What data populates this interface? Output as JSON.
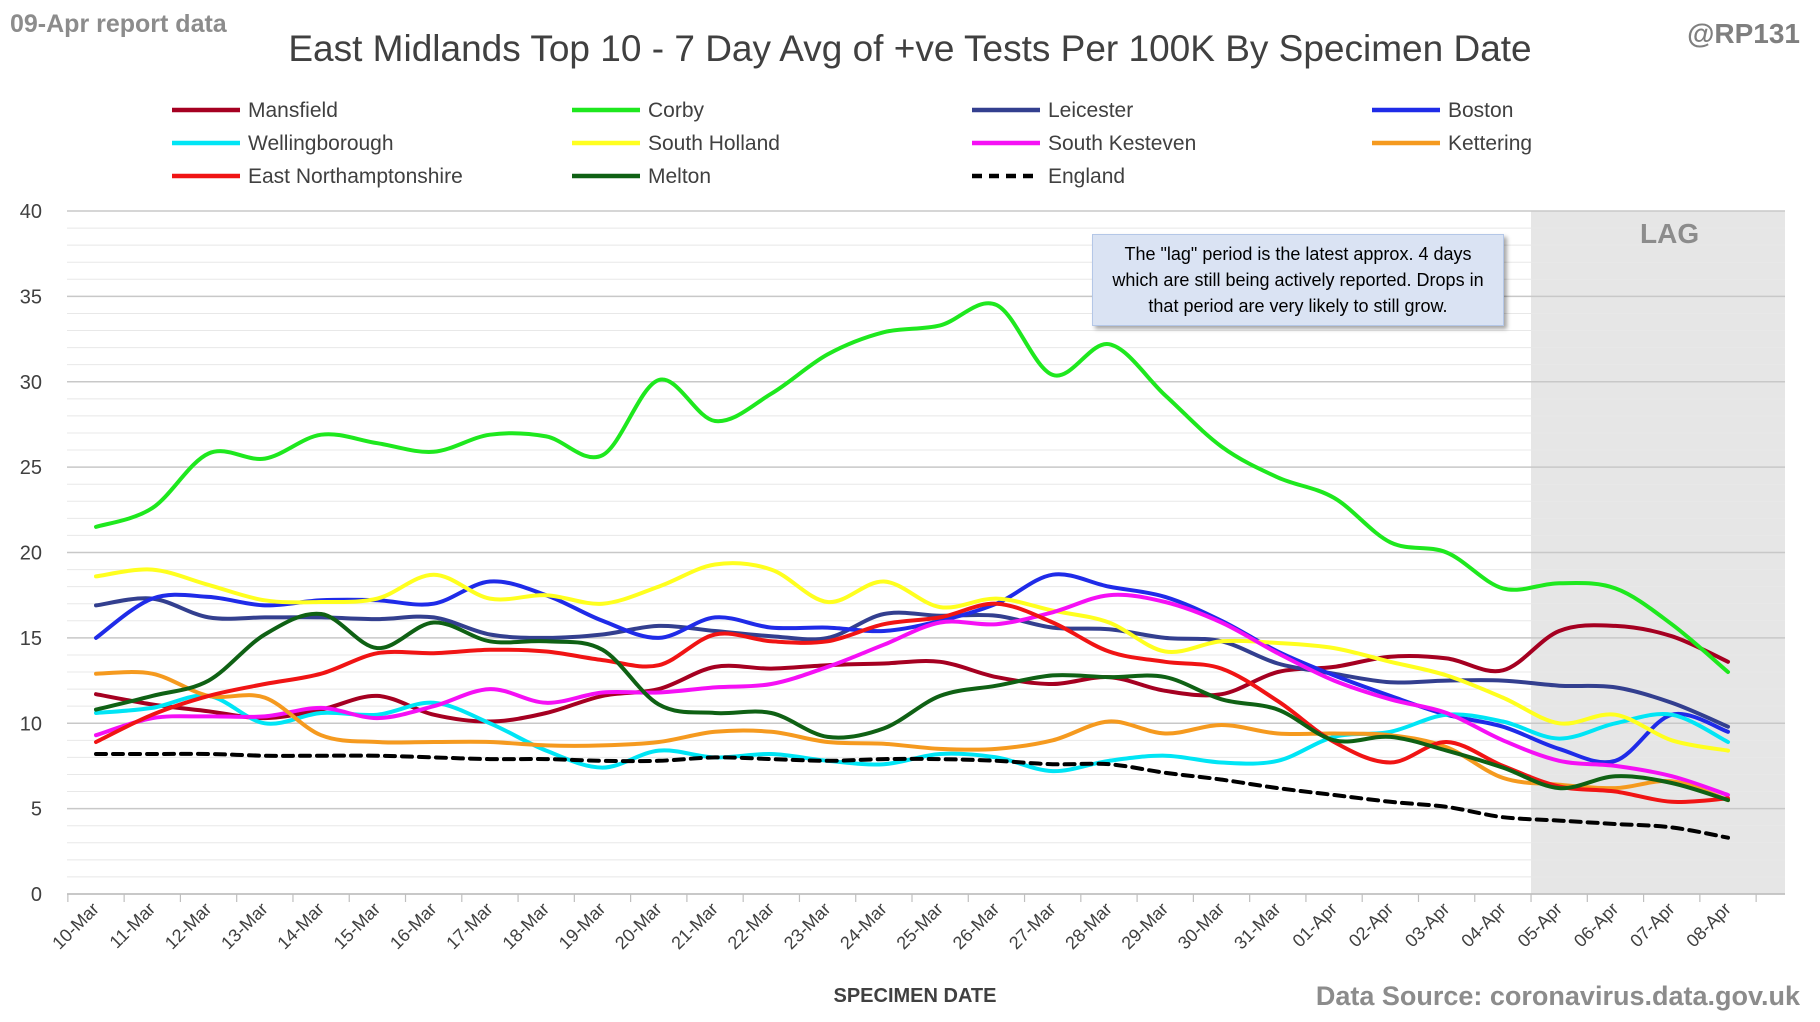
{
  "header": {
    "report_label": "09-Apr report data",
    "handle": "@RP131",
    "source": "Data Source: coronavirus.data.gov.uk"
  },
  "annotation": {
    "note": "The \"lag\" period is the latest approx. 4 days which are still being actively reported. Drops in that period are very likely to still grow.",
    "lag_label": "LAG"
  },
  "chart_data": {
    "type": "line",
    "title": "East Midlands Top 10 - 7 Day Avg of +ve Tests Per 100K By Specimen Date",
    "xlabel": "SPECIMEN DATE",
    "ylabel": "",
    "ylim": [
      0,
      40
    ],
    "yticks": [
      0,
      5,
      10,
      15,
      20,
      25,
      30,
      35,
      40
    ],
    "grid": true,
    "legend": "top",
    "lag_period": [
      "05-Apr",
      "08-Apr"
    ],
    "categories": [
      "10-Mar",
      "11-Mar",
      "12-Mar",
      "13-Mar",
      "14-Mar",
      "15-Mar",
      "16-Mar",
      "17-Mar",
      "18-Mar",
      "19-Mar",
      "20-Mar",
      "21-Mar",
      "22-Mar",
      "23-Mar",
      "24-Mar",
      "25-Mar",
      "26-Mar",
      "27-Mar",
      "28-Mar",
      "29-Mar",
      "30-Mar",
      "31-Mar",
      "01-Apr",
      "02-Apr",
      "03-Apr",
      "04-Apr",
      "05-Apr",
      "06-Apr",
      "07-Apr",
      "08-Apr"
    ],
    "series": [
      {
        "name": "Mansfield",
        "color": "#a50021",
        "dash": false,
        "values": [
          11.7,
          11.1,
          10.7,
          10.3,
          10.8,
          11.6,
          10.5,
          10.1,
          10.6,
          11.6,
          12.0,
          13.3,
          13.2,
          13.4,
          13.5,
          13.6,
          12.7,
          12.3,
          12.7,
          11.9,
          11.7,
          13.0,
          13.3,
          13.9,
          13.8,
          13.1,
          15.4,
          15.7,
          15.1,
          13.6
        ]
      },
      {
        "name": "Corby",
        "color": "#1ee81e",
        "dash": false,
        "values": [
          21.5,
          22.6,
          25.8,
          25.5,
          26.9,
          26.4,
          25.9,
          26.9,
          26.8,
          25.7,
          30.1,
          27.7,
          29.3,
          31.6,
          32.9,
          33.3,
          34.5,
          30.4,
          32.2,
          29.2,
          26.2,
          24.4,
          23.2,
          20.6,
          20.0,
          17.9,
          18.2,
          17.9,
          15.8,
          13.0
        ]
      },
      {
        "name": "Leicester",
        "color": "#333f8f",
        "dash": false,
        "values": [
          16.9,
          17.3,
          16.2,
          16.2,
          16.2,
          16.1,
          16.2,
          15.2,
          15.0,
          15.2,
          15.7,
          15.4,
          15.1,
          15.0,
          16.4,
          16.3,
          16.3,
          15.6,
          15.5,
          15.0,
          14.8,
          13.5,
          12.9,
          12.4,
          12.5,
          12.5,
          12.2,
          12.1,
          11.2,
          9.8
        ]
      },
      {
        "name": "Boston",
        "color": "#1f2be8",
        "dash": false,
        "values": [
          15.0,
          17.3,
          17.4,
          16.9,
          17.2,
          17.2,
          17.0,
          18.3,
          17.5,
          16.0,
          15.0,
          16.2,
          15.6,
          15.6,
          15.4,
          16.0,
          17.0,
          18.7,
          18.0,
          17.4,
          16.0,
          14.2,
          12.8,
          11.6,
          10.5,
          9.8,
          8.5,
          7.8,
          10.5,
          9.5
        ]
      },
      {
        "name": "Wellingborough",
        "color": "#00e5f5",
        "dash": false,
        "values": [
          10.6,
          10.9,
          11.6,
          10.0,
          10.6,
          10.5,
          11.2,
          10.0,
          8.4,
          7.4,
          8.4,
          8.0,
          8.2,
          7.8,
          7.6,
          8.2,
          8.0,
          7.2,
          7.8,
          8.1,
          7.7,
          7.8,
          9.2,
          9.5,
          10.5,
          10.1,
          9.1,
          10.0,
          10.5,
          8.9
        ]
      },
      {
        "name": "South Holland",
        "color": "#ffff1f",
        "dash": false,
        "values": [
          18.6,
          19.0,
          18.1,
          17.2,
          17.1,
          17.3,
          18.7,
          17.3,
          17.5,
          17.0,
          18.0,
          19.3,
          19.0,
          17.1,
          18.3,
          16.8,
          17.3,
          16.6,
          15.9,
          14.2,
          14.8,
          14.7,
          14.4,
          13.6,
          12.8,
          11.5,
          10.0,
          10.5,
          9.0,
          8.4
        ]
      },
      {
        "name": "South Kesteven",
        "color": "#f510f5",
        "dash": false,
        "values": [
          9.3,
          10.3,
          10.4,
          10.4,
          10.9,
          10.3,
          11.0,
          12.0,
          11.2,
          11.8,
          11.8,
          12.1,
          12.3,
          13.3,
          14.6,
          15.9,
          15.8,
          16.5,
          17.5,
          17.1,
          15.9,
          14.1,
          12.5,
          11.4,
          10.6,
          9.0,
          7.8,
          7.5,
          6.9,
          5.8
        ]
      },
      {
        "name": "Kettering",
        "color": "#f59a1f",
        "dash": false,
        "values": [
          12.9,
          12.9,
          11.6,
          11.5,
          9.3,
          8.9,
          8.9,
          8.9,
          8.7,
          8.7,
          8.9,
          9.5,
          9.5,
          8.9,
          8.8,
          8.5,
          8.5,
          9.0,
          10.1,
          9.4,
          9.9,
          9.4,
          9.4,
          9.3,
          8.6,
          6.8,
          6.4,
          6.2,
          6.6,
          5.5
        ]
      },
      {
        "name": "East Northamptonshire",
        "color": "#f01414",
        "dash": false,
        "values": [
          8.9,
          10.5,
          11.6,
          12.3,
          12.9,
          14.1,
          14.1,
          14.3,
          14.2,
          13.7,
          13.4,
          15.2,
          14.8,
          14.8,
          15.8,
          16.2,
          17.0,
          15.9,
          14.2,
          13.6,
          13.2,
          11.3,
          8.9,
          7.7,
          8.9,
          7.5,
          6.3,
          6.0,
          5.4,
          5.6
        ]
      },
      {
        "name": "Melton",
        "color": "#0f6114",
        "dash": false,
        "values": [
          10.8,
          11.6,
          12.5,
          15.2,
          16.4,
          14.4,
          15.9,
          14.8,
          14.8,
          14.3,
          11.1,
          10.6,
          10.6,
          9.2,
          9.7,
          11.6,
          12.2,
          12.8,
          12.7,
          12.7,
          11.4,
          10.8,
          9.0,
          9.2,
          8.4,
          7.4,
          6.2,
          6.9,
          6.5,
          5.5
        ]
      },
      {
        "name": "England",
        "color": "#000000",
        "dash": true,
        "values": [
          8.2,
          8.2,
          8.2,
          8.1,
          8.1,
          8.1,
          8.0,
          7.9,
          7.9,
          7.8,
          7.8,
          8.0,
          7.9,
          7.8,
          7.9,
          7.9,
          7.8,
          7.6,
          7.6,
          7.1,
          6.7,
          6.2,
          5.8,
          5.4,
          5.1,
          4.5,
          4.3,
          4.1,
          3.9,
          3.3
        ]
      }
    ]
  }
}
